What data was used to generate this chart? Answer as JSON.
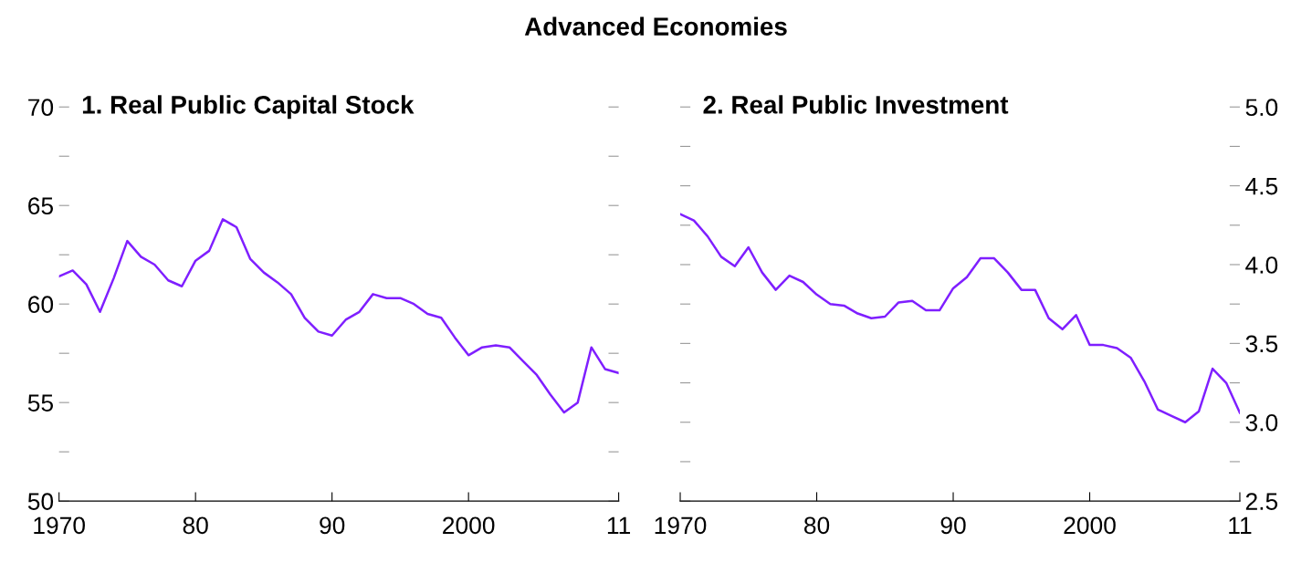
{
  "chart_data": [
    {
      "type": "line",
      "title": "Advanced Economies",
      "subtitle": "1. Real Public Capital Stock",
      "x": [
        1970,
        1971,
        1972,
        1973,
        1974,
        1975,
        1976,
        1977,
        1978,
        1979,
        1980,
        1981,
        1982,
        1983,
        1984,
        1985,
        1986,
        1987,
        1988,
        1989,
        1990,
        1991,
        1992,
        1993,
        1994,
        1995,
        1996,
        1997,
        1998,
        1999,
        2000,
        2001,
        2002,
        2003,
        2004,
        2005,
        2006,
        2007,
        2008,
        2009,
        2010,
        2011
      ],
      "series": [
        {
          "color": "#7f1fff",
          "values": [
            61.4,
            61.7,
            61.0,
            59.6,
            61.3,
            63.2,
            62.4,
            62.0,
            61.2,
            60.9,
            62.2,
            62.7,
            64.3,
            63.9,
            62.3,
            61.6,
            61.1,
            60.5,
            59.3,
            58.6,
            58.4,
            59.2,
            59.6,
            60.5,
            60.3,
            60.3,
            60.0,
            59.5,
            59.3,
            58.3,
            57.4,
            57.8,
            57.9,
            57.8,
            57.1,
            56.4,
            55.4,
            54.5,
            55.0,
            57.8,
            56.7,
            56.5
          ]
        }
      ],
      "xlim": [
        1970,
        2011
      ],
      "xticks": [
        1970,
        {
          "value": 1980,
          "label": "80"
        },
        {
          "value": 1990,
          "label": "90"
        },
        2000,
        {
          "value": 2011,
          "label": "11"
        }
      ],
      "ylim": [
        50,
        70
      ],
      "yticks": [
        50,
        {
          "value": 52.5,
          "label": null
        },
        55,
        {
          "value": 57.5,
          "label": null
        },
        60,
        {
          "value": 62.5,
          "label": null
        },
        65,
        {
          "value": 67.5,
          "label": null
        },
        70
      ],
      "grid": false,
      "legend": false
    },
    {
      "type": "line",
      "subtitle": "2. Real Public Investment",
      "x": [
        1970,
        1971,
        1972,
        1973,
        1974,
        1975,
        1976,
        1977,
        1978,
        1979,
        1980,
        1981,
        1982,
        1983,
        1984,
        1985,
        1986,
        1987,
        1988,
        1989,
        1990,
        1991,
        1992,
        1993,
        1994,
        1995,
        1996,
        1997,
        1998,
        1999,
        2000,
        2001,
        2002,
        2003,
        2004,
        2005,
        2006,
        2007,
        2008,
        2009,
        2010,
        2011
      ],
      "series": [
        {
          "color": "#7f1fff",
          "axis": "y2",
          "values": [
            4.32,
            4.28,
            4.18,
            4.05,
            3.99,
            4.11,
            3.95,
            3.84,
            3.93,
            3.89,
            3.81,
            3.75,
            3.74,
            3.69,
            3.66,
            3.67,
            3.76,
            3.77,
            3.71,
            3.71,
            3.85,
            3.92,
            4.04,
            4.04,
            3.95,
            3.84,
            3.84,
            3.66,
            3.59,
            3.68,
            3.49,
            3.49,
            3.47,
            3.41,
            3.26,
            3.08,
            3.04,
            3.0,
            3.07,
            3.34,
            3.25,
            3.06
          ]
        }
      ],
      "xlim": [
        1970,
        2011
      ],
      "xticks": [
        1970,
        {
          "value": 1980,
          "label": "80"
        },
        {
          "value": 1990,
          "label": "90"
        },
        2000,
        {
          "value": 2011,
          "label": "11"
        }
      ],
      "y2lim": [
        2.5,
        5.0
      ],
      "y2ticks": [
        {
          "value": 2.5,
          "label": "2.5"
        },
        {
          "value": 2.75,
          "label": null
        },
        {
          "value": 3.0,
          "label": "3.0"
        },
        {
          "value": 3.25,
          "label": null
        },
        {
          "value": 3.5,
          "label": "3.5"
        },
        {
          "value": 3.75,
          "label": null
        },
        {
          "value": 4.0,
          "label": "4.0"
        },
        {
          "value": 4.25,
          "label": null
        },
        {
          "value": 4.5,
          "label": "4.5"
        },
        {
          "value": 4.75,
          "label": null
        },
        {
          "value": 5.0,
          "label": "5.0"
        }
      ],
      "grid": false,
      "legend": false
    }
  ]
}
